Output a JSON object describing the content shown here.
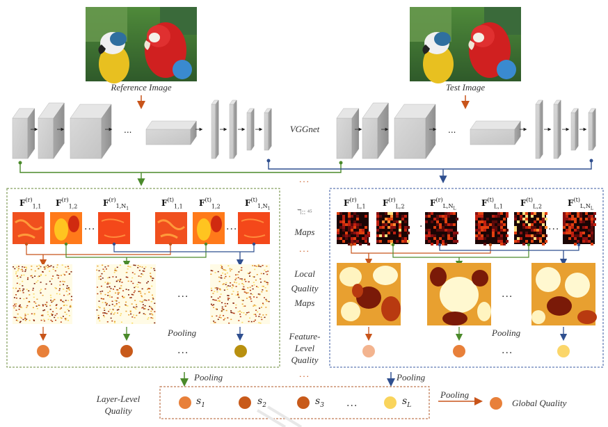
{
  "labels": {
    "reference_image": "Reference Image",
    "test_image": "Test Image",
    "network": "VGGnet",
    "maps": "Maps",
    "local_quality_maps": [
      "Local",
      "Quality",
      "Maps"
    ],
    "pooling": "Pooling",
    "feature_level_quality": [
      "Feature-",
      "Level",
      "Quality"
    ],
    "layer_level_quality": [
      "Layer-Level",
      "Quality"
    ],
    "global_quality": "Global Quality",
    "ellipsis": "...",
    "maps_scribble": "ℸ:: ⁴⁵"
  },
  "left_panel": {
    "features": [
      {
        "sup": "(r)",
        "sub": "1,1"
      },
      {
        "sup": "(r)",
        "sub": "1,2"
      },
      {
        "sup": "(r)",
        "sub": "1,N",
        "subsub": "1"
      },
      {
        "sup": "(t)",
        "sub": "1,1"
      },
      {
        "sup": "(t)",
        "sub": "1,2"
      },
      {
        "sup": "(t)",
        "sub": "1,N",
        "subsub": "1"
      }
    ]
  },
  "right_panel": {
    "features": [
      {
        "sup": "(r)",
        "sub": "L,1"
      },
      {
        "sup": "(r)",
        "sub": "L,2"
      },
      {
        "sup": "(r)",
        "sub": "L,N",
        "subsub": "L"
      },
      {
        "sup": "(t)",
        "sub": "L,1"
      },
      {
        "sup": "(t)",
        "sub": "L,2"
      },
      {
        "sup": "(t)",
        "sub": "L,N",
        "subsub": "L"
      }
    ]
  },
  "layer_scores": [
    {
      "name": "s",
      "sub": "1",
      "color": "#e8803a"
    },
    {
      "name": "s",
      "sub": "2",
      "color": "#c85a1a"
    },
    {
      "name": "s",
      "sub": "3",
      "color": "#c85a1a"
    },
    {
      "name": "s",
      "sub": "L",
      "color": "#f9d45c"
    }
  ],
  "feature_dots_left": [
    "#e8803a",
    "#c85a1a",
    "#b8900f"
  ],
  "feature_dots_right": [
    "#f3b48f",
    "#e8803a",
    "#fbd66a"
  ],
  "global_dot_color": "#e8803a",
  "colors": {
    "orange_path": "#c8541a",
    "green_path": "#4a8a2a",
    "blue_path": "#2f4f8f",
    "panel_left_border": "#6a8a3a",
    "panel_right_border": "#3a5aa0",
    "score_box_border": "#b05a2a"
  }
}
